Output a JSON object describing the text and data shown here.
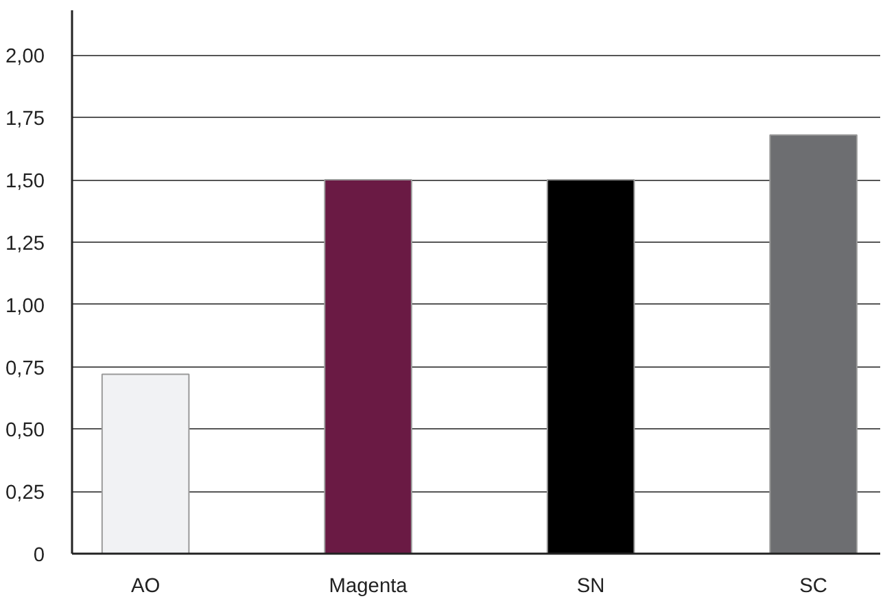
{
  "chart_data": {
    "type": "bar",
    "categories": [
      "AO",
      "Magenta",
      "SN",
      "SC"
    ],
    "values": [
      0.72,
      1.5,
      1.5,
      1.68
    ],
    "colors": [
      "#f1f2f4",
      "#6a1a44",
      "#000000",
      "#6d6e71"
    ],
    "ylim": [
      0,
      2.18
    ],
    "yticks": [
      0,
      {
        "value": 0.25,
        "label": "0,25"
      },
      {
        "value": 0.5,
        "label": "0,50"
      },
      {
        "value": 0.75,
        "label": "0,75"
      },
      {
        "value": 1,
        "label": "1,00"
      },
      {
        "value": 1.25,
        "label": "1,25"
      },
      {
        "value": 1.5,
        "label": "1,50"
      },
      {
        "value": 1.75,
        "label": "1,75"
      },
      {
        "value": 2,
        "label": "2,00"
      }
    ],
    "grid": "y"
  }
}
